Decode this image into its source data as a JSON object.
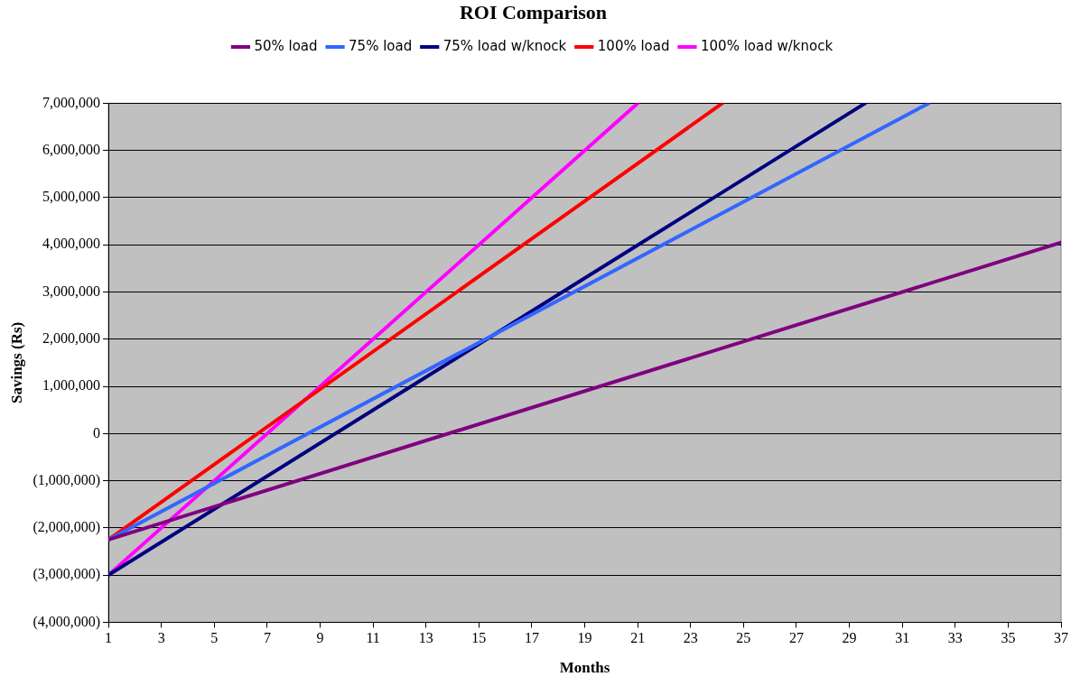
{
  "chart_data": {
    "type": "line",
    "title": "ROI Comparison",
    "xlabel": "Months",
    "ylabel": "Savings (Rs)",
    "legend": "top",
    "grid": "y",
    "marker": "none",
    "line_style": "solid",
    "xlim": [
      1,
      37
    ],
    "xticks": [
      1,
      3,
      5,
      7,
      9,
      11,
      13,
      15,
      17,
      19,
      21,
      23,
      25,
      27,
      29,
      31,
      33,
      35,
      37
    ],
    "ylim": [
      -4000000,
      7000000
    ],
    "yticks": [
      {
        "value": -4000000,
        "label": "(4,000,000)"
      },
      {
        "value": -3000000,
        "label": "(3,000,000)"
      },
      {
        "value": -2000000,
        "label": "(2,000,000)"
      },
      {
        "value": -1000000,
        "label": "(1,000,000)"
      },
      {
        "value": 0,
        "label": "0"
      },
      {
        "value": 1000000,
        "label": "1,000,000"
      },
      {
        "value": 2000000,
        "label": "2,000,000"
      },
      {
        "value": 3000000,
        "label": "3,000,000"
      },
      {
        "value": 4000000,
        "label": "4,000,000"
      },
      {
        "value": 5000000,
        "label": "5,000,000"
      },
      {
        "value": 6000000,
        "label": "6,000,000"
      },
      {
        "value": 7000000,
        "label": "7,000,000"
      }
    ],
    "series": [
      {
        "name": "50% load",
        "color": "#800080",
        "x": [
          1,
          37
        ],
        "values": [
          -2250000,
          4050000
        ]
      },
      {
        "name": "75% load",
        "color": "#3366ff",
        "x": [
          1,
          32
        ],
        "values": [
          -2250000,
          7000000
        ]
      },
      {
        "name": "75% load w/knock",
        "color": "#000080",
        "x": [
          1,
          29.6
        ],
        "values": [
          -3000000,
          7000000
        ]
      },
      {
        "name": "100% load",
        "color": "#ff0000",
        "x": [
          1,
          24.2
        ],
        "values": [
          -2250000,
          7000000
        ]
      },
      {
        "name": "100% load w/knock",
        "color": "#ff00ff",
        "x": [
          1,
          21
        ],
        "values": [
          -3000000,
          7000000
        ]
      }
    ]
  }
}
